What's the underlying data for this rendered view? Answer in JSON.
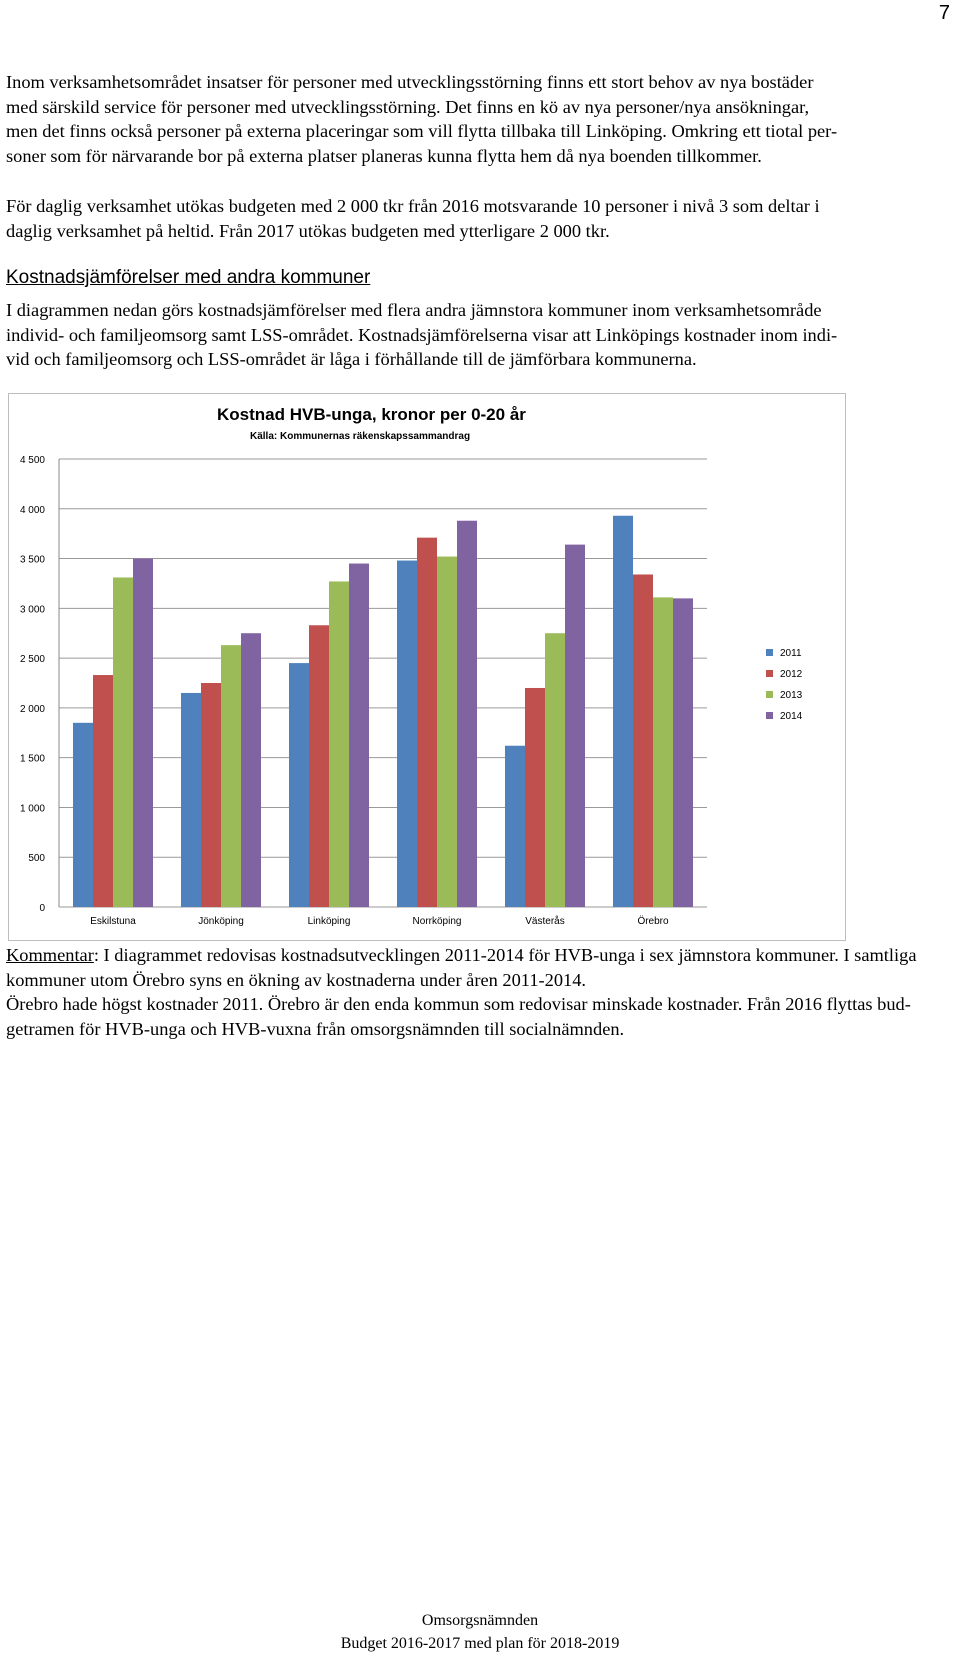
{
  "page_number": "7",
  "paragraphs": [
    {
      "lines": [
        "Inom verksamhetsområdet insatser för personer med utvecklingsstörning finns ett stort behov av nya bostäder",
        "med särskild service för personer med utvecklingsstörning. Det finns en kö av nya personer/nya ansökningar,",
        "men det finns också personer på externa placeringar som vill flytta tillbaka till Linköping. Omkring ett tiotal per-",
        "soner som för närvarande bor på externa platser planeras kunna flytta hem då nya boenden tillkommer."
      ]
    },
    {
      "lines": [
        "För daglig verksamhet utökas budgeten med 2 000 tkr från 2016 motsvarande 10 personer i nivå 3 som deltar i",
        "daglig verksamhet på heltid. Från 2017 utökas budgeten med ytterligare 2 000 tkr."
      ]
    }
  ],
  "section_heading": "Kostnadsjämförelser med andra kommuner",
  "section_paragraph": {
    "lines": [
      "I diagrammen nedan görs kostnadsjämförelser med flera andra jämnstora kommuner inom verksamhetsområde",
      "individ- och familjeomsorg samt LSS-området. Kostnadsjämförelserna visar att Linköpings kostnader inom indi-",
      "vid och familjeomsorg och LSS-området är låga i förhållande till de jämförbara kommunerna."
    ]
  },
  "chart_data": {
    "type": "bar",
    "title": "Kostnad HVB-unga, kronor per 0-20 år",
    "subtitle": "Källa: Kommunernas räkenskapssammandrag",
    "xlabel": "",
    "ylabel": "",
    "ylim": [
      0,
      4500
    ],
    "yticks": [
      0,
      500,
      1000,
      1500,
      2000,
      2500,
      3000,
      3500,
      4000,
      4500
    ],
    "ytick_labels": [
      "0",
      "500",
      "1 000",
      "1 500",
      "2 000",
      "2 500",
      "3 000",
      "3 500",
      "4 000",
      "4 500"
    ],
    "grid": true,
    "legend_position": "right",
    "categories": [
      "Eskilstuna",
      "Jönköping",
      "Linköping",
      "Norrköping",
      "Västerås",
      "Örebro"
    ],
    "series": [
      {
        "name": "2011",
        "color": "#4f81bd",
        "values": [
          1850,
          2150,
          2450,
          3480,
          1620,
          3930
        ]
      },
      {
        "name": "2012",
        "color": "#c0504d",
        "values": [
          2330,
          2250,
          2830,
          3710,
          2200,
          3340
        ]
      },
      {
        "name": "2013",
        "color": "#9bbb59",
        "values": [
          3310,
          2630,
          3270,
          3520,
          2750,
          3110
        ]
      },
      {
        "name": "2014",
        "color": "#8064a2",
        "values": [
          3500,
          2750,
          3450,
          3880,
          3640,
          3100
        ]
      }
    ]
  },
  "comment": {
    "label": "Kommentar",
    "line1_rest": ": I diagrammet redovisas kostnadsutvecklingen 2011-2014 för HVB-unga i sex jämnstora kommuner. I samtliga",
    "line2": "kommuner utom Örebro syns en ökning av kostnaderna under åren 2011-2014.",
    "line3": "Örebro hade högst kostnader 2011. Örebro är den enda kommun som redovisar minskade kostnader. Från 2016 flyttas bud-",
    "line4": "getramen för HVB-unga och HVB-vuxna från omsorgsnämnden till socialnämnden."
  },
  "footer": {
    "line1": "Omsorgsnämnden",
    "line2": "Budget 2016-2017 med plan för 2018-2019"
  }
}
